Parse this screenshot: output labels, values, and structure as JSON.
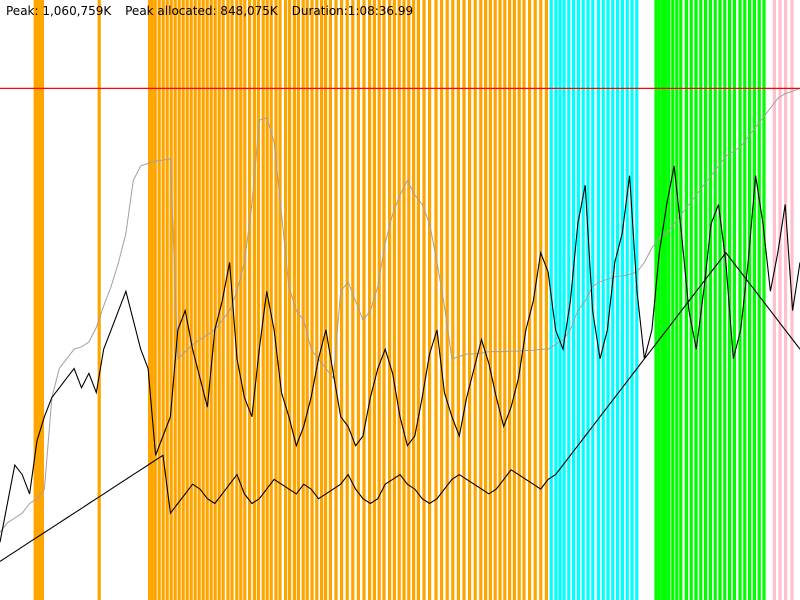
{
  "header": {
    "peak": "Peak: 1,060,759K",
    "peak_allocated": "Peak allocated: 848,075K",
    "duration": "Duration:1:08:36.99"
  },
  "colors": {
    "background": "#ffffff",
    "phase_orange": "#ffa500",
    "phase_cyan": "#00ffff",
    "phase_green": "#00ff00",
    "phase_pink": "#ffc0cb",
    "peak_line": "#ff0000",
    "peak_series": "#a0a0a0",
    "used_series": "#000000"
  },
  "chart_data": {
    "type": "line",
    "title": "",
    "xlabel": "",
    "ylabel": "",
    "x_unit": "sample",
    "xlim": [
      0,
      1
    ],
    "ylim": [
      0,
      1244000
    ],
    "grid": false,
    "peak_marker": {
      "name": "Peak",
      "value": 1060759
    },
    "phase_bands": [
      {
        "phase": "orange",
        "x": [
          0.044,
          0.047,
          0.05,
          0.053,
          0.124,
          0.187,
          0.19,
          0.194,
          0.199,
          0.204,
          0.209,
          0.214,
          0.219,
          0.224,
          0.229,
          0.234,
          0.239,
          0.244,
          0.249,
          0.254,
          0.259,
          0.264,
          0.269,
          0.274,
          0.279,
          0.285,
          0.29,
          0.296,
          0.301,
          0.306,
          0.312,
          0.318,
          0.323,
          0.329,
          0.334,
          0.339,
          0.345,
          0.35,
          0.357,
          0.362,
          0.368,
          0.373,
          0.379,
          0.384,
          0.39,
          0.396,
          0.402,
          0.407,
          0.413,
          0.42,
          0.427,
          0.434,
          0.441,
          0.448,
          0.455,
          0.462,
          0.468,
          0.474,
          0.48,
          0.487,
          0.493,
          0.499,
          0.505,
          0.511,
          0.517,
          0.523,
          0.53,
          0.537,
          0.545,
          0.552,
          0.559,
          0.566,
          0.573,
          0.58,
          0.587,
          0.594,
          0.601,
          0.607,
          0.613,
          0.619,
          0.625,
          0.631,
          0.637,
          0.643,
          0.649,
          0.655,
          0.662,
          0.669,
          0.676,
          0.683
        ]
      },
      {
        "phase": "cyan",
        "x": [
          0.689,
          0.695,
          0.7,
          0.705,
          0.711,
          0.717,
          0.723,
          0.729,
          0.735,
          0.741,
          0.748,
          0.754,
          0.76,
          0.766,
          0.772,
          0.778,
          0.784,
          0.79,
          0.796
        ]
      },
      {
        "phase": "green",
        "x": [
          0.82,
          0.824,
          0.828,
          0.832,
          0.836,
          0.841,
          0.846,
          0.851,
          0.858,
          0.864,
          0.87,
          0.876,
          0.882,
          0.888,
          0.894,
          0.9,
          0.906,
          0.912,
          0.918,
          0.925,
          0.931,
          0.937,
          0.943,
          0.949,
          0.955
        ]
      },
      {
        "phase": "pink",
        "x": [
          0.968,
          0.975,
          0.982,
          0.99
        ]
      }
    ],
    "series": [
      {
        "key": "peak",
        "values": [
          140000,
          160000,
          170000,
          180000,
          200000,
          210000,
          230000,
          420000,
          480000,
          500000,
          520000,
          525000,
          535000,
          565000,
          610000,
          650000,
          700000,
          760000,
          870000,
          900000,
          905000,
          910000,
          912000,
          915000,
          500000,
          515000,
          530000,
          540000,
          550000,
          560000,
          580000,
          600000,
          640000,
          700000,
          820000,
          995000,
          1000000,
          950000,
          800000,
          650000,
          600000,
          580000,
          520000,
          500000,
          480000,
          460000,
          640000,
          660000,
          620000,
          580000,
          600000,
          650000,
          740000,
          800000,
          840000,
          870000,
          840000,
          820000,
          780000,
          700000,
          610000,
          500000,
          505000,
          510000,
          510000,
          512000,
          515000,
          515000,
          515000,
          516000,
          516000,
          517000,
          518000,
          520000,
          520000,
          530000,
          540000,
          560000,
          600000,
          620000,
          650000,
          660000,
          665000,
          670000,
          672000,
          675000,
          680000,
          700000,
          730000,
          750000,
          760000,
          780000,
          800000,
          820000,
          840000,
          860000,
          880000,
          900000,
          920000,
          930000,
          940000,
          960000,
          980000,
          1000000,
          1020000,
          1040000,
          1050000,
          1055000,
          1060759
        ],
        "color_key": "peak_series"
      },
      {
        "key": "used",
        "values": [
          120000,
          200000,
          280000,
          260000,
          220000,
          330000,
          380000,
          420000,
          440000,
          460000,
          480000,
          440000,
          470000,
          430000,
          520000,
          560000,
          600000,
          640000,
          580000,
          520000,
          480000,
          300000,
          340000,
          380000,
          560000,
          600000,
          520000,
          460000,
          400000,
          560000,
          620000,
          700000,
          500000,
          420000,
          380000,
          520000,
          640000,
          560000,
          430000,
          380000,
          320000,
          360000,
          420000,
          500000,
          560000,
          470000,
          380000,
          360000,
          320000,
          340000,
          420000,
          480000,
          520000,
          470000,
          380000,
          320000,
          340000,
          420000,
          510000,
          560000,
          430000,
          380000,
          340000,
          420000,
          480000,
          540000,
          490000,
          420000,
          360000,
          400000,
          460000,
          560000,
          620000,
          720000,
          680000,
          560000,
          520000,
          620000,
          780000,
          860000,
          600000,
          500000,
          560000,
          700000,
          760000,
          880000,
          640000,
          500000,
          560000,
          720000,
          820000,
          900000,
          760000,
          600000,
          520000,
          640000,
          780000,
          820000,
          700000,
          500000,
          560000,
          700000,
          880000,
          780000,
          640000,
          720000,
          820000,
          600000,
          700000
        ],
        "color_key": "used_series"
      },
      {
        "key": "used2",
        "values": [
          80000,
          90000,
          100000,
          110000,
          120000,
          130000,
          140000,
          150000,
          160000,
          170000,
          180000,
          190000,
          200000,
          210000,
          220000,
          230000,
          240000,
          250000,
          260000,
          270000,
          280000,
          290000,
          300000,
          180000,
          200000,
          220000,
          240000,
          230000,
          210000,
          200000,
          220000,
          240000,
          260000,
          220000,
          200000,
          210000,
          230000,
          250000,
          240000,
          230000,
          220000,
          240000,
          230000,
          210000,
          220000,
          230000,
          240000,
          260000,
          230000,
          210000,
          200000,
          210000,
          240000,
          250000,
          260000,
          240000,
          230000,
          210000,
          200000,
          210000,
          230000,
          250000,
          260000,
          250000,
          240000,
          230000,
          220000,
          230000,
          250000,
          270000,
          260000,
          250000,
          240000,
          230000,
          250000,
          260000,
          280000,
          300000,
          320000,
          340000,
          360000,
          380000,
          400000,
          420000,
          440000,
          460000,
          480000,
          500000,
          520000,
          540000,
          560000,
          580000,
          600000,
          620000,
          640000,
          660000,
          680000,
          700000,
          720000,
          700000,
          680000,
          660000,
          640000,
          620000,
          600000,
          580000,
          560000,
          540000,
          520000
        ],
        "color_key": "used_series"
      }
    ]
  }
}
